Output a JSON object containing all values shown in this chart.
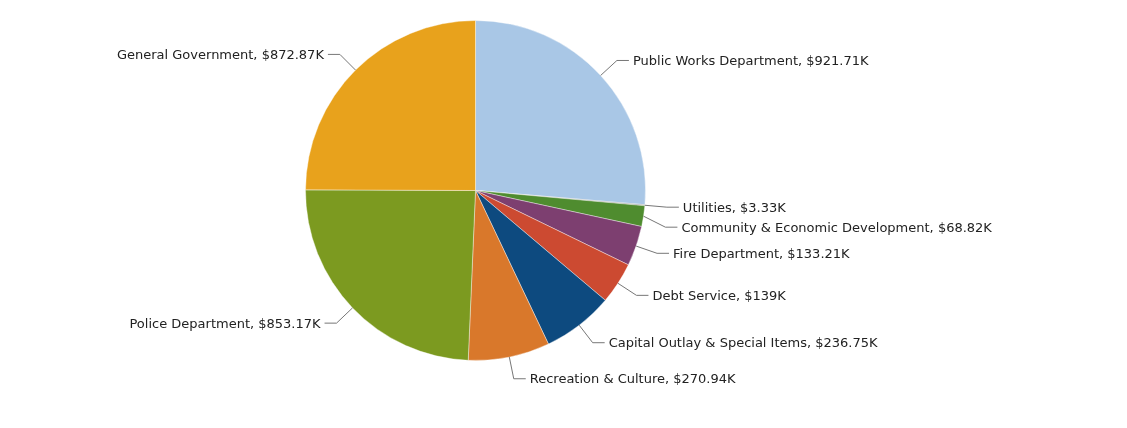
{
  "chart_data": {
    "type": "pie",
    "categories": [
      "Public Works Department",
      "Utilities",
      "Community & Economic Development",
      "Fire Department",
      "Debt Service",
      "Capital Outlay & Special Items",
      "Recreation & Culture",
      "Police Department",
      "General Government"
    ],
    "values": [
      921.71,
      3.33,
      68.82,
      133.21,
      139,
      236.75,
      270.94,
      853.17,
      872.87
    ],
    "colors": [
      "#a9c7e6",
      "#8a8a8a",
      "#4f8c2f",
      "#7d3f70",
      "#cc4a31",
      "#0d4a7f",
      "#d9782b",
      "#7c9a20",
      "#e8a21c"
    ],
    "value_labels": [
      "$921.71K",
      "$3.33K",
      "$68.82K",
      "$133.21K",
      "$139K",
      "$236.75K",
      "$270.94K",
      "$853.17K",
      "$872.87K"
    ]
  }
}
